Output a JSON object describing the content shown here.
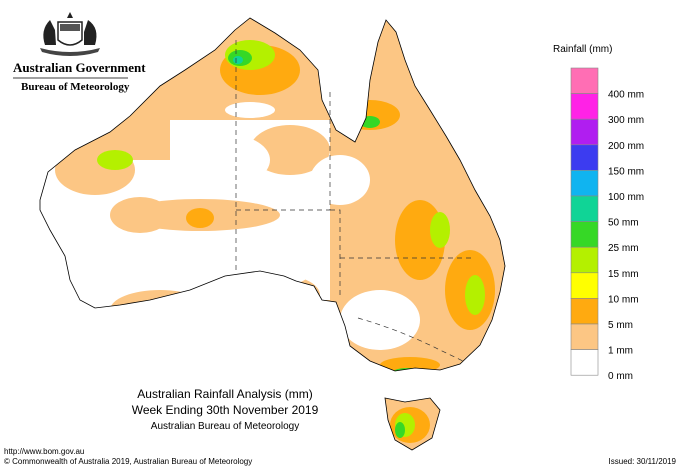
{
  "header": {
    "government": "Australian Government",
    "bureau": "Bureau of Meteorology"
  },
  "legend": {
    "title": "Rainfall (mm)",
    "colors": [
      "#ff6eb4",
      "#ff22e6",
      "#b01ef0",
      "#3c3cf0",
      "#10b4f0",
      "#10d496",
      "#36d826",
      "#b4f000",
      "#ffff00",
      "#ffaa10",
      "#fcc684",
      "#ffffff"
    ],
    "labels": [
      "400 mm",
      "300 mm",
      "200 mm",
      "150 mm",
      "100 mm",
      "50 mm",
      "25 mm",
      "15 mm",
      "10 mm",
      "5 mm",
      "1 mm",
      "0 mm"
    ]
  },
  "map": {
    "title": "Australian Rainfall Analysis (mm)",
    "period": "Week Ending 30th November 2019",
    "agency": "Australian Bureau of Meteorology"
  },
  "footer": {
    "url": "http://www.bom.gov.au",
    "copyright": "© Commonwealth of Australia 2019, Australian Bureau of Meteorology",
    "issued": "Issued: 30/11/2019"
  }
}
